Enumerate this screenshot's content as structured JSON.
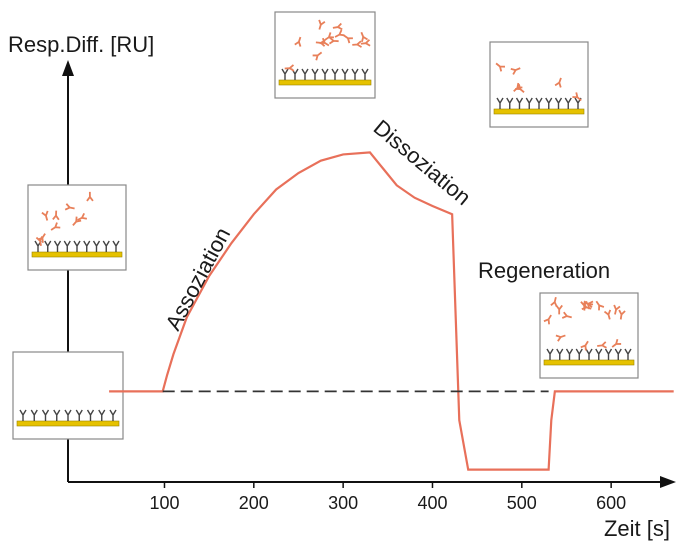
{
  "chart_data": {
    "type": "line",
    "y_label": "Resp.Diff. [RU]",
    "x_label": "Zeit [s]",
    "annotations": [
      "Assoziation",
      "Dissoziation",
      "Regeneration"
    ],
    "xlim": [
      -8,
      667
    ],
    "xticks": [
      100,
      200,
      300,
      400,
      500,
      600
    ],
    "ylim": [
      0,
      100
    ],
    "series": [
      {
        "color": "#e8705a",
        "x": [
          38,
          98,
          103,
          110,
          125,
          150,
          175,
          200,
          225,
          250,
          275,
          300,
          330,
          345,
          360,
          380,
          400,
          422,
          426,
          430,
          440,
          530,
          533,
          537,
          670
        ],
        "values": [
          22,
          22,
          26,
          31,
          40,
          50,
          58,
          65,
          71,
          75,
          78,
          79.5,
          80,
          76,
          72,
          69,
          67,
          65,
          40,
          15,
          3,
          3,
          15,
          22,
          22
        ]
      },
      {
        "color": "#333333",
        "dashed": true,
        "x": [
          98,
          530
        ],
        "values": [
          22,
          22
        ]
      }
    ]
  }
}
